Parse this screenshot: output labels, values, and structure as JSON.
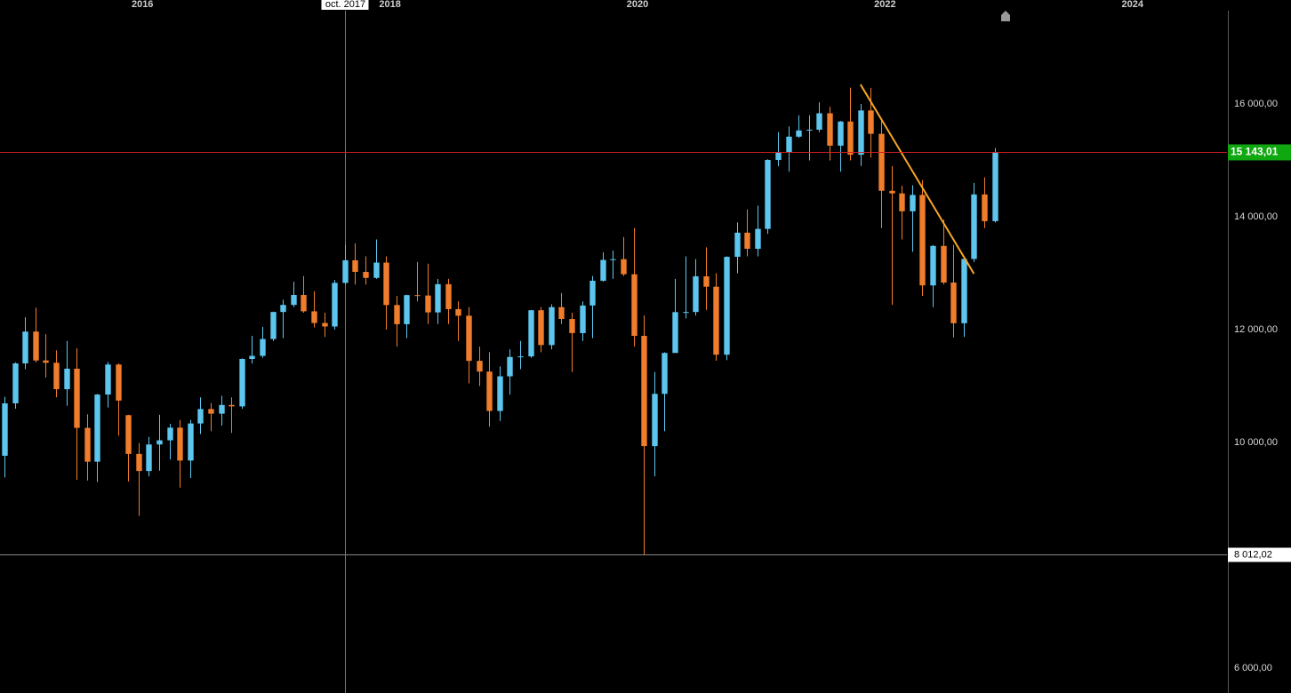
{
  "chart_data": {
    "type": "candlestick",
    "x": [
      "2015-01",
      "2015-02",
      "2015-03",
      "2015-04",
      "2015-05",
      "2015-06",
      "2015-07",
      "2015-08",
      "2015-09",
      "2015-10",
      "2015-11",
      "2015-12",
      "2016-01",
      "2016-02",
      "2016-03",
      "2016-04",
      "2016-05",
      "2016-06",
      "2016-07",
      "2016-08",
      "2016-09",
      "2016-10",
      "2016-11",
      "2016-12",
      "2017-01",
      "2017-02",
      "2017-03",
      "2017-04",
      "2017-05",
      "2017-06",
      "2017-07",
      "2017-08",
      "2017-09",
      "2017-10",
      "2017-11",
      "2017-12",
      "2018-01",
      "2018-02",
      "2018-03",
      "2018-04",
      "2018-05",
      "2018-06",
      "2018-07",
      "2018-08",
      "2018-09",
      "2018-10",
      "2018-11",
      "2018-12",
      "2019-01",
      "2019-02",
      "2019-03",
      "2019-04",
      "2019-05",
      "2019-06",
      "2019-07",
      "2019-08",
      "2019-09",
      "2019-10",
      "2019-11",
      "2019-12",
      "2020-01",
      "2020-02",
      "2020-03",
      "2020-04",
      "2020-05",
      "2020-06",
      "2020-07",
      "2020-08",
      "2020-09",
      "2020-10",
      "2020-11",
      "2020-12",
      "2021-01",
      "2021-02",
      "2021-03",
      "2021-04",
      "2021-05",
      "2021-06",
      "2021-07",
      "2021-08",
      "2021-09",
      "2021-10",
      "2021-11",
      "2021-12",
      "2022-01",
      "2022-02",
      "2022-03",
      "2022-04",
      "2022-05",
      "2022-06",
      "2022-07",
      "2022-08",
      "2022-09",
      "2022-10",
      "2022-11",
      "2022-12",
      "2023-01"
    ],
    "open": [
      9765,
      10694,
      11402,
      11966,
      11454,
      11413,
      10945,
      11308,
      10259,
      9660,
      10850,
      11382,
      10485,
      9798,
      9495,
      9965,
      10039,
      10263,
      9680,
      10337,
      10593,
      10511,
      10665,
      10640,
      11481,
      11535,
      11834,
      12313,
      12438,
      12615,
      12325,
      12118,
      12056,
      12829,
      13230,
      13024,
      12918,
      13189,
      12436,
      12097,
      12612,
      12605,
      12306,
      12806,
      12364,
      12247,
      11447,
      11257,
      10559,
      11173,
      11516,
      11526,
      12344,
      11727,
      12399,
      12189,
      11939,
      12428,
      12867,
      13236,
      13249,
      12982,
      11890,
      9936,
      10862,
      11587,
      12311,
      12313,
      12945,
      12761,
      11556,
      13291,
      13719,
      13433,
      13786,
      15008,
      15136,
      15421,
      15531,
      15544,
      15835,
      15261,
      15689,
      15100,
      15885,
      15471,
      14461,
      14415,
      14098,
      14388,
      12784,
      13484,
      12835,
      12114,
      13253,
      14397,
      13923
    ],
    "high": [
      10810,
      11420,
      12219,
      12391,
      11920,
      11635,
      11800,
      11670,
      10500,
      10860,
      11430,
      11400,
      10490,
      9990,
      10100,
      10490,
      10330,
      10400,
      10400,
      10800,
      10700,
      10827,
      10800,
      11490,
      11890,
      12050,
      12320,
      12530,
      12850,
      12950,
      12680,
      12300,
      12880,
      13500,
      13530,
      13300,
      13600,
      13300,
      12600,
      12620,
      13200,
      13170,
      12900,
      12900,
      12500,
      12400,
      11700,
      11600,
      11350,
      11650,
      11800,
      12350,
      12400,
      12450,
      12650,
      12300,
      12500,
      12950,
      13370,
      13400,
      13640,
      13800,
      12250,
      11250,
      11600,
      12900,
      13300,
      13250,
      13460,
      13000,
      13300,
      13900,
      14130,
      14200,
      15020,
      15500,
      15600,
      15800,
      15800,
      16030,
      15950,
      15700,
      16290,
      16000,
      16285,
      15750,
      14900,
      14550,
      14560,
      14650,
      13500,
      13950,
      13500,
      13300,
      14600,
      14700,
      15220
    ],
    "low": [
      9380,
      10600,
      11300,
      11420,
      11150,
      10800,
      10650,
      9338,
      9325,
      9300,
      10620,
      10120,
      9310,
      8700,
      9400,
      9500,
      9700,
      9200,
      9370,
      10150,
      10200,
      10300,
      10170,
      10600,
      11400,
      11500,
      11800,
      11850,
      12400,
      12300,
      12040,
      11870,
      12000,
      12800,
      12800,
      12800,
      12900,
      12000,
      11700,
      11850,
      12500,
      12100,
      12100,
      12100,
      11800,
      11050,
      11000,
      10280,
      10380,
      10850,
      11300,
      11500,
      11600,
      11650,
      12100,
      11250,
      11800,
      11850,
      12850,
      12900,
      12950,
      11700,
      8012.02,
      9400,
      10200,
      11600,
      12200,
      12250,
      12350,
      11450,
      11460,
      13000,
      13300,
      13300,
      13700,
      14900,
      14800,
      15400,
      15000,
      15500,
      15000,
      14800,
      15000,
      14900,
      15050,
      13800,
      12439,
      13600,
      13380,
      12600,
      12400,
      12800,
      11860,
      11870,
      13200,
      13800,
      13900
    ],
    "close": [
      10694,
      11402,
      11966,
      11454,
      11413,
      10945,
      11308,
      10259,
      9660,
      10850,
      11382,
      10743,
      9798,
      9495,
      9965,
      10039,
      10263,
      9680,
      10337,
      10593,
      10511,
      10665,
      10640,
      11481,
      11535,
      11834,
      12313,
      12438,
      12615,
      12325,
      12118,
      12056,
      12829,
      13230,
      13024,
      12918,
      13189,
      12436,
      12097,
      12612,
      12605,
      12306,
      12806,
      12364,
      12247,
      11447,
      11257,
      10559,
      11173,
      11516,
      11526,
      12344,
      11727,
      12399,
      12189,
      11939,
      12428,
      12867,
      13236,
      13249,
      12982,
      11890,
      9936,
      10862,
      11587,
      12311,
      12313,
      12945,
      12761,
      11556,
      13291,
      13719,
      13433,
      13786,
      15008,
      15136,
      15421,
      15531,
      15544,
      15835,
      15261,
      15689,
      15100,
      15885,
      15471,
      14461,
      14415,
      14098,
      14388,
      12784,
      13484,
      12835,
      12114,
      13253,
      14397,
      13923,
      15143.01
    ],
    "up_color": "#5cc6ef",
    "down_color": "#f07d2c",
    "xlim": [
      2014.964,
      2024.878
    ],
    "xticks": [
      2016,
      2018,
      2020,
      2022,
      2024
    ],
    "ylim": [
      5560,
      17654
    ],
    "yticks": [
      {
        "value": 6000,
        "label": "6 000,00"
      },
      {
        "value": 10000,
        "label": "10 000,00"
      },
      {
        "value": 12000,
        "label": "12 000,00"
      },
      {
        "value": 14000,
        "label": "14 000,00"
      },
      {
        "value": 16000,
        "label": "16 000,00"
      }
    ],
    "last_price": {
      "value": 15143.01,
      "label": "15 143,01",
      "color": "#d02020"
    },
    "low_line": {
      "value": 8012.02,
      "label": "8 012,02"
    },
    "crosshair": {
      "x": "2017-10",
      "label": "oct. 2017"
    },
    "trendline": {
      "start": {
        "x": "2021-12",
        "value": 16346
      },
      "end": {
        "x": "2022-11",
        "value": 12992
      },
      "color": "#f5a623"
    }
  }
}
